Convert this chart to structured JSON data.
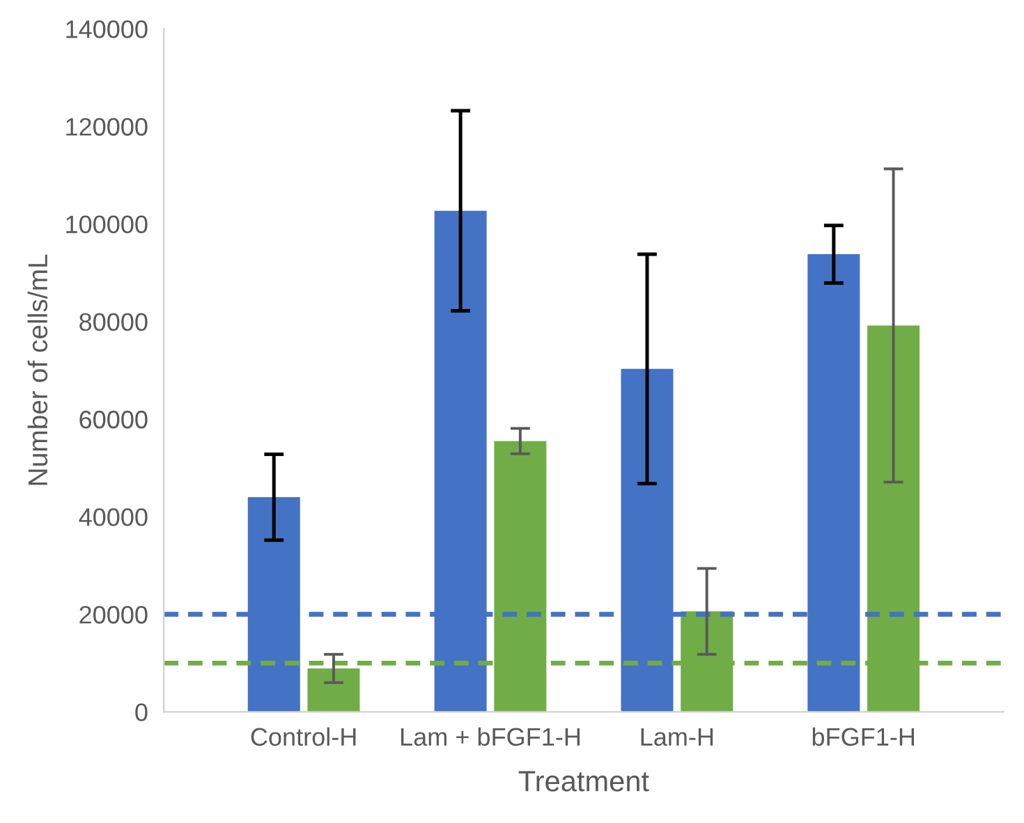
{
  "chart_data": {
    "type": "bar",
    "xlabel": "Treatment",
    "ylabel": "Number of cells/mL",
    "categories": [
      "Control-H",
      "Lam + bFGF1-H",
      "Lam-H",
      "bFGF1-H"
    ],
    "series": [
      {
        "color": "#4472c4",
        "values": [
          44000,
          102700,
          70300,
          93800
        ],
        "errors": [
          8800,
          20500,
          23500,
          5900
        ]
      },
      {
        "color": "#70ad47",
        "values": [
          8900,
          55500,
          20600,
          79200
        ],
        "errors": [
          2900,
          2600,
          8800,
          32100
        ]
      }
    ],
    "ylim": [
      0,
      140000
    ],
    "yticks": [
      0,
      20000,
      40000,
      60000,
      80000,
      100000,
      120000,
      140000
    ],
    "ref_lines": [
      {
        "axis": "y",
        "value": 20000,
        "color": "#4472c4",
        "line_style": "dashed"
      },
      {
        "axis": "y",
        "value": 10000,
        "color": "#70ad47",
        "line_style": "dashed"
      }
    ],
    "grid": false,
    "legend": false
  }
}
